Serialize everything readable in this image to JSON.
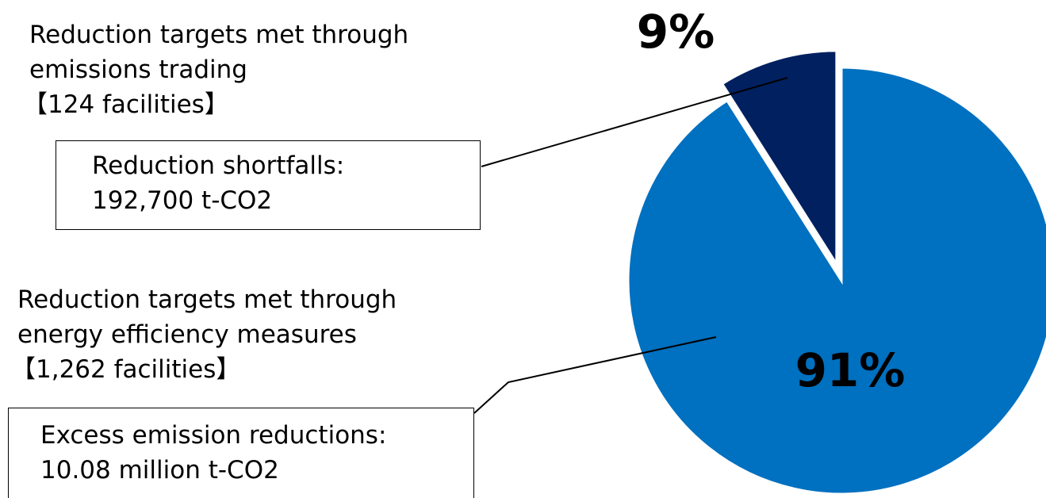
{
  "chart_data": {
    "type": "pie",
    "slices": [
      {
        "value": 91,
        "label": "91%",
        "color": "#0070c0",
        "description": [
          "Reduction targets met through",
          "energy efficiency measures",
          "【1,262 facilities】"
        ],
        "callout": [
          "Excess emission reductions:",
          "10.08 million t-CO2"
        ]
      },
      {
        "value": 9,
        "label": "9%",
        "color": "#002060",
        "description": [
          "Reduction targets met through",
          "emissions trading",
          "【124 facilities】"
        ],
        "callout": [
          "Reduction shortfalls:",
          "192,700 t-CO2"
        ]
      }
    ],
    "title": "",
    "legend": "none",
    "label_color_inside": "#000000",
    "label_color_outside": "#000000"
  }
}
